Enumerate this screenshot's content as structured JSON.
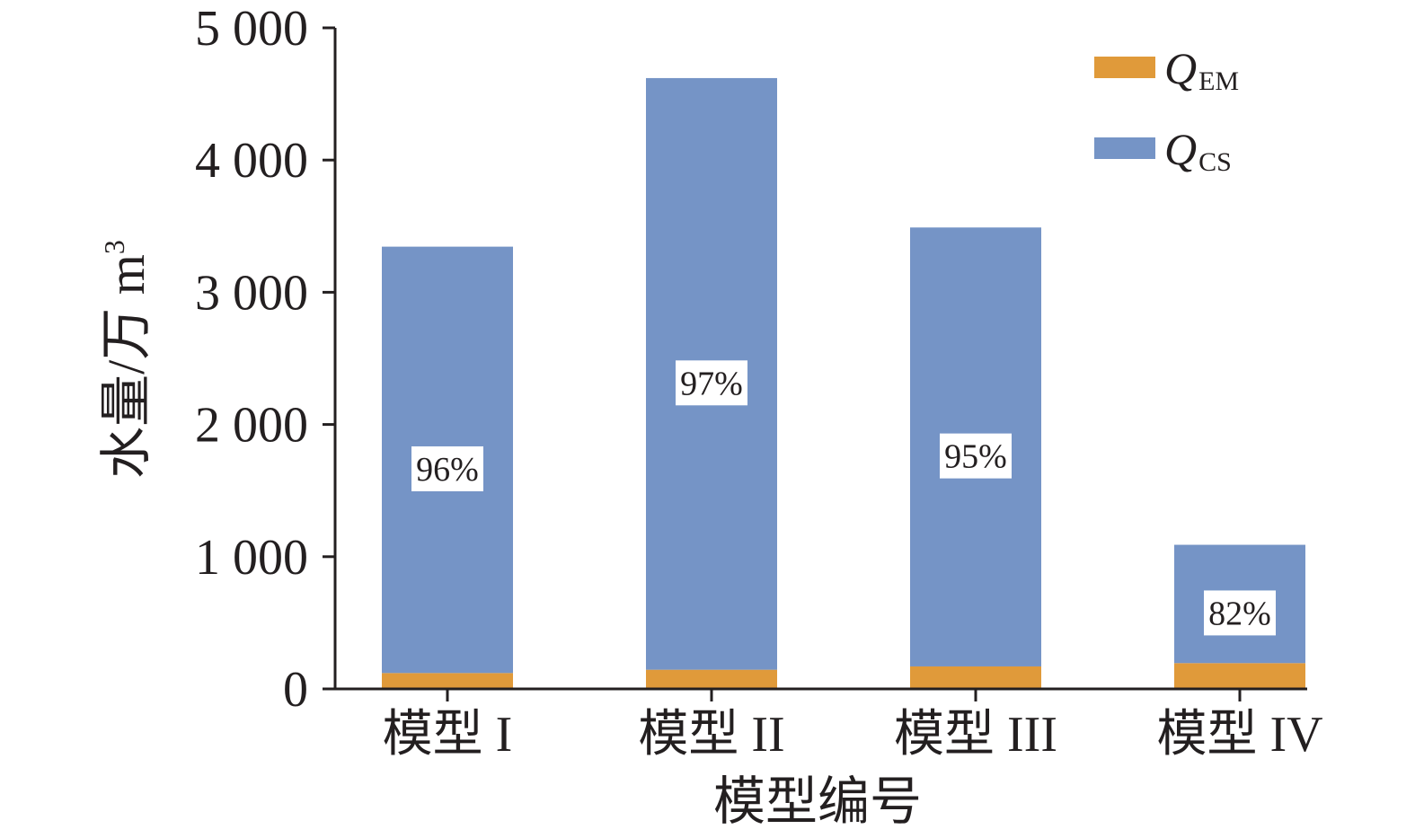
{
  "chart_data": {
    "type": "bar",
    "stacked": true,
    "categories": [
      "模型 I",
      "模型 II",
      "模型 III",
      "模型 IV"
    ],
    "series": [
      {
        "name": "Q_EM",
        "name_main": "Q",
        "name_sub": "EM",
        "color": "#e09a3a",
        "values": [
          120,
          145,
          170,
          195
        ]
      },
      {
        "name": "Q_CS",
        "name_main": "Q",
        "name_sub": "CS",
        "color": "#7594c6",
        "values": [
          3225,
          4475,
          3320,
          895
        ]
      }
    ],
    "data_labels": [
      "96%",
      "97%",
      "95%",
      "82%"
    ],
    "xlabel": "模型编号",
    "ylabel": "水量/万 m",
    "ylabel_sup": "3",
    "ylim": [
      0,
      5000
    ],
    "yticks": [
      0,
      1000,
      2000,
      3000,
      4000,
      5000
    ],
    "ytick_labels": [
      "0",
      "1 000",
      "2 000",
      "3 000",
      "4 000",
      "5 000"
    ],
    "grid": false,
    "legend_position": "top-right"
  }
}
